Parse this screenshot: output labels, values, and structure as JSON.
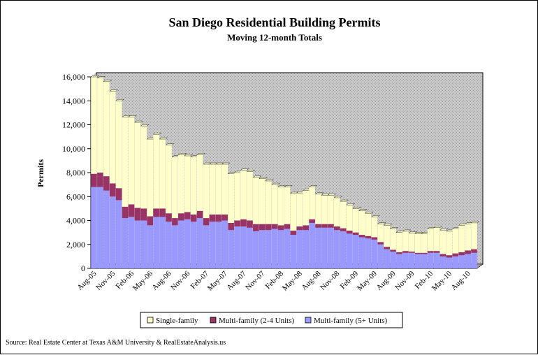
{
  "chart_data": {
    "type": "bar",
    "stacked": true,
    "title": "San Diego Residential Building Permits",
    "subtitle": "Moving 12-month Totals",
    "ylabel": "Permits",
    "xlabel": "",
    "ylim": [
      0,
      16000
    ],
    "yticks": [
      0,
      2000,
      4000,
      6000,
      8000,
      10000,
      12000,
      14000,
      16000
    ],
    "ytick_labels": [
      "0",
      "2,000",
      "4,000",
      "6,000",
      "8,000",
      "10,000",
      "12,000",
      "14,000",
      "16,000"
    ],
    "grid": false,
    "plot_background": "hatched gray",
    "legend_position": "bottom",
    "source": "Source: Real Estate Center at Texas A&M University & RealEstateAnalysis.us",
    "categories": [
      "Aug-05",
      "Sep-05",
      "Oct-05",
      "Nov-05",
      "Dec-05",
      "Jan-06",
      "Feb-06",
      "Mar-06",
      "Apr-06",
      "May-06",
      "Jun-06",
      "Jul-06",
      "Aug-06",
      "Sep-06",
      "Oct-06",
      "Nov-06",
      "Dec-06",
      "Jan-07",
      "Feb-07",
      "Mar-07",
      "Apr-07",
      "May-07",
      "Jun-07",
      "Jul-07",
      "Aug-07",
      "Sep-07",
      "Oct-07",
      "Nov-07",
      "Dec-07",
      "Jan-08",
      "Feb-08",
      "Mar-08",
      "Apr-08",
      "May-08",
      "Jun-08",
      "Jul-08",
      "Aug-08",
      "Sep-08",
      "Oct-08",
      "Nov-08",
      "Dec-08",
      "Jan-09",
      "Feb-09",
      "Mar-09",
      "Apr-09",
      "May-09",
      "Jun-09",
      "Jul-09",
      "Aug-09",
      "Sep-09",
      "Oct-09",
      "Nov-09",
      "Dec-09",
      "Jan-10",
      "Feb-10",
      "Mar-10",
      "Apr-10",
      "May-10",
      "Jun-10",
      "Jul-10",
      "Aug-10",
      "Sep-10"
    ],
    "x_tick_labels": [
      {
        "index": 0,
        "label": "Aug-05"
      },
      {
        "index": 3,
        "label": "Nov-05"
      },
      {
        "index": 6,
        "label": "Feb-06"
      },
      {
        "index": 9,
        "label": "May-06"
      },
      {
        "index": 12,
        "label": "Aug-06"
      },
      {
        "index": 15,
        "label": "Nov-06"
      },
      {
        "index": 18,
        "label": "Feb-07"
      },
      {
        "index": 21,
        "label": "May-07"
      },
      {
        "index": 24,
        "label": "Aug-07"
      },
      {
        "index": 27,
        "label": "Nov-07"
      },
      {
        "index": 30,
        "label": "Feb-08"
      },
      {
        "index": 33,
        "label": "May-08"
      },
      {
        "index": 36,
        "label": "Aug-08"
      },
      {
        "index": 39,
        "label": "Nov-08"
      },
      {
        "index": 42,
        "label": "Feb-09"
      },
      {
        "index": 45,
        "label": "May-09"
      },
      {
        "index": 48,
        "label": "Aug-09"
      },
      {
        "index": 51,
        "label": "Nov-09"
      },
      {
        "index": 54,
        "label": "Feb-10"
      },
      {
        "index": 57,
        "label": "May-10"
      },
      {
        "index": 60,
        "label": "Aug-10"
      }
    ],
    "series": [
      {
        "name": "Multi-family (5+ Units)",
        "color": "#9999ff",
        "values": [
          6800,
          6800,
          6500,
          6000,
          5700,
          4200,
          4300,
          4000,
          4000,
          3600,
          4300,
          4300,
          3900,
          3600,
          4000,
          4100,
          3900,
          4200,
          3600,
          3900,
          3900,
          4000,
          3200,
          3500,
          3500,
          3400,
          3100,
          3200,
          3200,
          3300,
          3200,
          3300,
          2800,
          3200,
          3200,
          3800,
          3400,
          3400,
          3400,
          3200,
          3100,
          2900,
          2800,
          2600,
          2500,
          2400,
          2000,
          1600,
          1400,
          1200,
          1300,
          1300,
          1200,
          1200,
          1300,
          1300,
          1000,
          900,
          1000,
          1100,
          1200,
          1300
        ]
      },
      {
        "name": "Multi-family (2-4 Units)",
        "color": "#993366",
        "values": [
          1100,
          1200,
          1200,
          1100,
          1000,
          950,
          1050,
          1050,
          1000,
          750,
          700,
          700,
          700,
          600,
          600,
          600,
          600,
          600,
          600,
          600,
          600,
          500,
          600,
          500,
          600,
          600,
          600,
          500,
          500,
          400,
          400,
          400,
          350,
          300,
          400,
          300,
          300,
          300,
          300,
          300,
          250,
          250,
          200,
          200,
          200,
          200,
          200,
          200,
          150,
          150,
          150,
          100,
          100,
          100,
          150,
          150,
          200,
          200,
          250,
          250,
          300,
          300
        ]
      },
      {
        "name": "Single-family",
        "color": "#ffffcc",
        "values": [
          8100,
          7900,
          7900,
          7700,
          7300,
          7500,
          7300,
          7150,
          6900,
          6450,
          6200,
          5800,
          5700,
          5100,
          4900,
          4700,
          4800,
          4700,
          4500,
          4200,
          4200,
          4200,
          4100,
          4000,
          4100,
          4100,
          3900,
          3800,
          3600,
          3300,
          3200,
          3100,
          3100,
          2800,
          2900,
          2700,
          2500,
          2400,
          2400,
          2400,
          2250,
          2150,
          2000,
          2000,
          1900,
          1700,
          1500,
          1800,
          1750,
          1650,
          1650,
          1550,
          1600,
          1600,
          1850,
          1950,
          2000,
          2000,
          2050,
          2250,
          2200,
          2200
        ]
      }
    ]
  }
}
